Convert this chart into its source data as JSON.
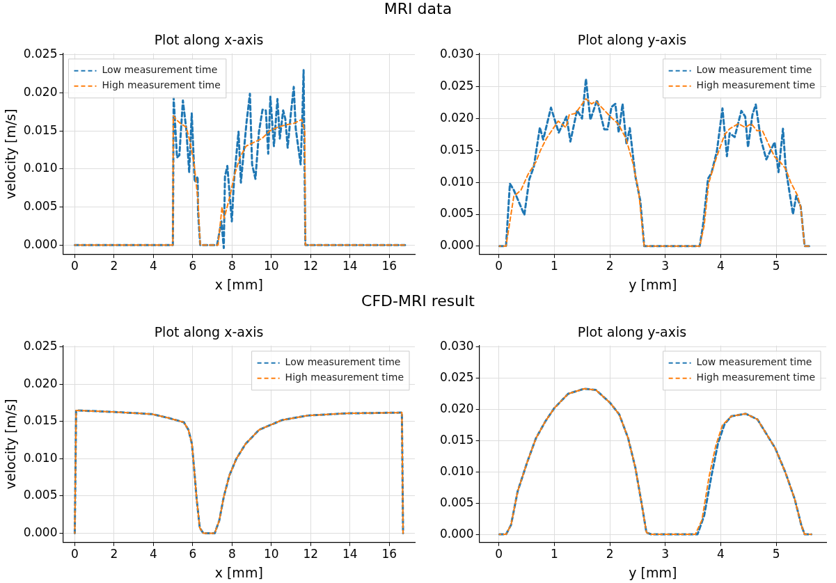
{
  "chart_data": [
    {
      "type": "line",
      "title": "Plot along x-axis",
      "xlabel": "x [mm]",
      "ylabel": "velocity [m/s]",
      "annotations": [
        "MRI data"
      ],
      "xlim": [
        -0.6,
        17.3
      ],
      "ylim": [
        -0.00125,
        0.0252
      ],
      "xticks": [
        0,
        2,
        4,
        6,
        8,
        10,
        12,
        14,
        16
      ],
      "yticks": [
        {
          "value": 0,
          "label": "0.000"
        },
        {
          "value": 0.005,
          "label": "0.005"
        },
        {
          "value": 0.01,
          "label": "0.010"
        },
        {
          "value": 0.015,
          "label": "0.015"
        },
        {
          "value": 0.02,
          "label": "0.020"
        },
        {
          "value": 0.025,
          "label": "0.025"
        }
      ],
      "grid": true,
      "legend": "top left",
      "marker": "none",
      "line_style": "dashed",
      "series": [
        {
          "name": "Low measurement time",
          "color": "#1f77b4",
          "x": [
            0,
            4.99,
            5.03,
            5.2,
            5.32,
            5.5,
            5.67,
            5.82,
            5.95,
            6.1,
            6.25,
            6.27,
            6.38,
            7.24,
            7.46,
            7.58,
            7.64,
            7.76,
            7.99,
            8.1,
            8.33,
            8.45,
            8.74,
            8.91,
            9.02,
            9.19,
            9.37,
            9.55,
            9.72,
            9.84,
            9.95,
            10.13,
            10.31,
            10.43,
            10.6,
            10.71,
            10.83,
            11.0,
            11.14,
            11.24,
            11.34,
            11.49,
            11.58,
            11.64,
            11.73,
            16.8
          ],
          "values": [
            0,
            0,
            0.0194,
            0.0115,
            0.0118,
            0.019,
            0.0153,
            0.0096,
            0.0173,
            0.0083,
            0.009,
            0.0044,
            0,
            0,
            0.0031,
            -0.0004,
            0.009,
            0.0104,
            0.0031,
            0.0085,
            0.0149,
            0.0082,
            0.0162,
            0.0199,
            0.0106,
            0.0087,
            0.0149,
            0.0178,
            0.0177,
            0.012,
            0.0195,
            0.013,
            0.0192,
            0.014,
            0.0177,
            0.0166,
            0.0128,
            0.0175,
            0.0208,
            0.0153,
            0.0134,
            0.0106,
            0.0172,
            0.023,
            0,
            0
          ]
        },
        {
          "name": "High measurement time",
          "color": "#ff7f0e",
          "x": [
            0,
            4.99,
            5.01,
            5.16,
            5.37,
            5.67,
            5.87,
            6.08,
            6.28,
            6.38,
            7.29,
            7.49,
            7.6,
            7.7,
            7.9,
            8.1,
            8.4,
            8.71,
            9.11,
            9.52,
            9.92,
            10.33,
            10.73,
            11.14,
            11.54,
            11.7,
            11.73,
            16.8
          ],
          "values": [
            0,
            0,
            0.017,
            0.0165,
            0.016,
            0.0155,
            0.0135,
            0.0105,
            0.0055,
            0,
            0,
            0.005,
            0.0035,
            0.0045,
            0.0065,
            0.009,
            0.0115,
            0.013,
            0.0135,
            0.014,
            0.015,
            0.0155,
            0.0158,
            0.016,
            0.0165,
            0.015,
            0,
            0
          ]
        }
      ]
    },
    {
      "type": "line",
      "title": "Plot along y-axis",
      "xlabel": "y [mm]",
      "xlim": [
        -0.35,
        5.9
      ],
      "ylim": [
        -0.0013,
        0.0302
      ],
      "xticks": [
        0,
        1,
        2,
        3,
        4,
        5
      ],
      "yticks": [
        {
          "value": 0,
          "label": "0.000"
        },
        {
          "value": 0.005,
          "label": "0.005"
        },
        {
          "value": 0.01,
          "label": "0.010"
        },
        {
          "value": 0.015,
          "label": "0.015"
        },
        {
          "value": 0.02,
          "label": "0.020"
        },
        {
          "value": 0.025,
          "label": "0.025"
        },
        {
          "value": 0.03,
          "label": "0.030"
        }
      ],
      "grid": true,
      "legend": "top right",
      "marker": "none",
      "line_style": "dashed",
      "series": [
        {
          "name": "Low measurement time",
          "color": "#1f77b4",
          "x": [
            0.01,
            0.13,
            0.2,
            0.27,
            0.46,
            0.55,
            0.63,
            0.74,
            0.8,
            0.94,
            1.08,
            1.22,
            1.29,
            1.41,
            1.5,
            1.57,
            1.65,
            1.77,
            1.9,
            1.96,
            2.03,
            2.1,
            2.16,
            2.23,
            2.3,
            2.36,
            2.46,
            2.55,
            2.62,
            3.62,
            3.68,
            3.77,
            3.83,
            3.93,
            4.03,
            4.11,
            4.16,
            4.25,
            4.37,
            4.44,
            4.49,
            4.57,
            4.63,
            4.72,
            4.82,
            4.97,
            5.04,
            5.12,
            5.17,
            5.3,
            5.36,
            5.44,
            5.51,
            5.63
          ],
          "values": [
            0,
            0,
            0.0098,
            0.0088,
            0.0049,
            0.0105,
            0.0124,
            0.0186,
            0.0167,
            0.0217,
            0.0178,
            0.0203,
            0.0164,
            0.0213,
            0.02,
            0.0262,
            0.0198,
            0.0229,
            0.0183,
            0.0183,
            0.0218,
            0.0223,
            0.0178,
            0.0223,
            0.016,
            0.0185,
            0.011,
            0.0071,
            0,
            0,
            0.0033,
            0.0106,
            0.0114,
            0.0149,
            0.0216,
            0.0141,
            0.0177,
            0.0171,
            0.0212,
            0.0203,
            0.0155,
            0.0206,
            0.0222,
            0.0168,
            0.0136,
            0.0163,
            0.0116,
            0.0184,
            0.0122,
            0.005,
            0.0079,
            0.0062,
            0,
            0
          ]
        },
        {
          "name": "High measurement time",
          "color": "#ff7f0e",
          "x": [
            0.01,
            0.13,
            0.27,
            0.4,
            0.53,
            0.67,
            0.75,
            0.86,
            1.07,
            1.21,
            1.27,
            1.38,
            1.57,
            1.67,
            1.75,
            1.88,
            2.02,
            2.15,
            2.29,
            2.42,
            2.52,
            2.62,
            3.62,
            3.7,
            3.78,
            3.91,
            4.07,
            4.16,
            4.32,
            4.44,
            4.55,
            4.65,
            4.75,
            4.86,
            4.97,
            5.07,
            5.17,
            5.26,
            5.38,
            5.44,
            5.51,
            5.63
          ],
          "values": [
            0,
            0,
            0.0078,
            0.0088,
            0.0113,
            0.0132,
            0.015,
            0.0169,
            0.0196,
            0.0186,
            0.0206,
            0.0208,
            0.0231,
            0.0223,
            0.0227,
            0.0215,
            0.0202,
            0.0192,
            0.0169,
            0.0129,
            0.0086,
            0,
            0,
            0.0032,
            0.0098,
            0.0136,
            0.0175,
            0.0184,
            0.0192,
            0.0186,
            0.0192,
            0.0181,
            0.0181,
            0.016,
            0.014,
            0.0132,
            0.0121,
            0.01,
            0.008,
            0.0061,
            0,
            0
          ]
        }
      ]
    },
    {
      "type": "line",
      "title": "Plot along x-axis",
      "xlabel": "x [mm]",
      "ylabel": "velocity [m/s]",
      "annotations": [
        "CFD-MRI result"
      ],
      "xlim": [
        -0.6,
        17.3
      ],
      "ylim": [
        -0.00125,
        0.0252
      ],
      "xticks": [
        0,
        2,
        4,
        6,
        8,
        10,
        12,
        14,
        16
      ],
      "yticks": [
        {
          "value": 0,
          "label": "0.000"
        },
        {
          "value": 0.005,
          "label": "0.005"
        },
        {
          "value": 0.01,
          "label": "0.010"
        },
        {
          "value": 0.015,
          "label": "0.015"
        },
        {
          "value": 0.02,
          "label": "0.020"
        },
        {
          "value": 0.025,
          "label": "0.025"
        }
      ],
      "grid": true,
      "legend": "top right",
      "marker": "none",
      "line_style": "dashed",
      "series": [
        {
          "name": "Low measurement time",
          "color": "#1f77b4",
          "x": [
            0,
            0.07,
            1.95,
            3.93,
            4.74,
            5.55,
            5.78,
            5.96,
            6.08,
            6.2,
            6.36,
            6.54,
            7.12,
            7.35,
            7.58,
            7.87,
            8.22,
            8.69,
            9.38,
            10.55,
            11.82,
            13.8,
            16.64,
            16.7
          ],
          "values": [
            0,
            0.0165,
            0.0163,
            0.016,
            0.0155,
            0.0149,
            0.0139,
            0.012,
            0.0084,
            0.0046,
            0.0007,
            0,
            0,
            0.0017,
            0.0049,
            0.0078,
            0.01,
            0.012,
            0.0139,
            0.0152,
            0.0158,
            0.0161,
            0.0162,
            0
          ]
        },
        {
          "name": "High measurement time",
          "color": "#ff7f0e",
          "x": [
            0,
            0.07,
            1.95,
            3.93,
            4.74,
            5.55,
            5.78,
            5.96,
            6.08,
            6.2,
            6.36,
            6.54,
            7.12,
            7.35,
            7.58,
            7.87,
            8.22,
            8.69,
            9.38,
            10.55,
            11.82,
            13.8,
            16.64,
            16.7
          ],
          "values": [
            0,
            0.0165,
            0.0163,
            0.016,
            0.0155,
            0.0149,
            0.0139,
            0.012,
            0.0084,
            0.0046,
            0.0007,
            0,
            0,
            0.0017,
            0.0049,
            0.0078,
            0.01,
            0.012,
            0.0139,
            0.0152,
            0.0158,
            0.0161,
            0.0162,
            0
          ]
        }
      ]
    },
    {
      "type": "line",
      "title": "Plot along y-axis",
      "xlabel": "y [mm]",
      "xlim": [
        -0.35,
        5.9
      ],
      "ylim": [
        -0.0013,
        0.0302
      ],
      "xticks": [
        0,
        1,
        2,
        3,
        4,
        5
      ],
      "yticks": [
        {
          "value": 0,
          "label": "0.000"
        },
        {
          "value": 0.005,
          "label": "0.005"
        },
        {
          "value": 0.01,
          "label": "0.010"
        },
        {
          "value": 0.015,
          "label": "0.015"
        },
        {
          "value": 0.02,
          "label": "0.020"
        },
        {
          "value": 0.025,
          "label": "0.025"
        },
        {
          "value": 0.03,
          "label": "0.030"
        }
      ],
      "grid": true,
      "legend": "top right",
      "marker": "none",
      "line_style": "dashed",
      "series": [
        {
          "name": "Low measurement time",
          "color": "#1f77b4",
          "x": [
            0.01,
            0.13,
            0.22,
            0.34,
            0.51,
            0.67,
            0.84,
            1.0,
            1.25,
            1.54,
            1.75,
            2.0,
            2.17,
            2.33,
            2.46,
            2.58,
            2.66,
            2.75,
            3.58,
            3.7,
            3.83,
            3.95,
            4.07,
            4.19,
            4.45,
            4.66,
            4.82,
            4.98,
            5.16,
            5.33,
            5.45,
            5.51,
            5.63
          ],
          "values": [
            0,
            0,
            0.0015,
            0.0069,
            0.0115,
            0.0154,
            0.0181,
            0.0202,
            0.0225,
            0.0233,
            0.0231,
            0.0211,
            0.0192,
            0.0154,
            0.0107,
            0.0046,
            0.0003,
            0,
            0,
            0.003,
            0.0093,
            0.0146,
            0.0177,
            0.0189,
            0.0193,
            0.0184,
            0.0161,
            0.0138,
            0.01,
            0.0057,
            0.0015,
            0,
            0
          ]
        },
        {
          "name": "High measurement time",
          "color": "#ff7f0e",
          "x": [
            0.01,
            0.13,
            0.22,
            0.34,
            0.51,
            0.67,
            0.84,
            1.0,
            1.25,
            1.54,
            1.75,
            2.0,
            2.17,
            2.33,
            2.46,
            2.58,
            2.66,
            2.75,
            3.54,
            3.66,
            3.79,
            3.91,
            4.03,
            4.19,
            4.45,
            4.66,
            4.82,
            4.98,
            5.16,
            5.33,
            5.45,
            5.51,
            5.63
          ],
          "values": [
            0,
            0,
            0.0015,
            0.0069,
            0.0115,
            0.0154,
            0.0181,
            0.0202,
            0.0225,
            0.0233,
            0.0231,
            0.0211,
            0.0192,
            0.0154,
            0.0107,
            0.0046,
            0.0003,
            0,
            0,
            0.0023,
            0.0093,
            0.0142,
            0.0175,
            0.0189,
            0.0193,
            0.0184,
            0.0161,
            0.0138,
            0.01,
            0.0057,
            0.0015,
            0,
            0
          ]
        }
      ]
    }
  ]
}
